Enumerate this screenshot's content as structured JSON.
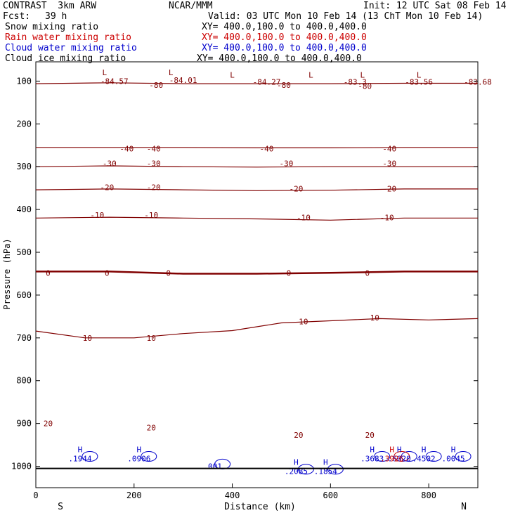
{
  "header": {
    "model": "CONTRAST  3km ARW",
    "center": "NCAR/MMM",
    "init": "Init: 12 UTC Sat 08 Feb 14",
    "fcst_label": "Fcst:",
    "fcst_value": "39 h",
    "valid": "Valid: 03 UTC Mon 10 Feb 14 (13 ChT Mon 10 Feb 14)"
  },
  "fields": [
    {
      "name": "Snow mixing ratio",
      "xy": "XY= 400.0,100.0 to 400.0,400.0",
      "color": "#000000"
    },
    {
      "name": "Rain water mixing ratio",
      "xy": "XY= 400.0,100.0 to 400.0,400.0",
      "color": "#cc0000"
    },
    {
      "name": "Cloud water mixing ratio",
      "xy": "XY= 400.0,100.0 to 400.0,400.0",
      "color": "#0000cc"
    },
    {
      "name": "Cloud ice mixing ratio",
      "xy": "XY= 400.0,100.0 to 400.0,400.0",
      "color": "#000000"
    }
  ],
  "chart_data": {
    "type": "contour cross-section",
    "xlabel": "Distance (km)",
    "ylabel": "Pressure (hPa)",
    "xlim": [
      0,
      900
    ],
    "ylim": [
      1050,
      55
    ],
    "x_ticks": [
      0,
      200,
      400,
      600,
      800
    ],
    "y_ticks": [
      100,
      200,
      300,
      400,
      500,
      600,
      700,
      800,
      900,
      1000
    ],
    "left_end": "S",
    "right_end": "N",
    "temperature_color": "#800000",
    "cloud_color": "#0000cc",
    "isotherms": [
      {
        "value": 10,
        "points": [
          [
            0,
            684
          ],
          [
            100,
            700
          ],
          [
            200,
            700
          ],
          [
            300,
            690
          ],
          [
            400,
            683
          ],
          [
            500,
            665
          ],
          [
            600,
            660
          ],
          [
            700,
            655
          ],
          [
            800,
            658
          ],
          [
            900,
            655
          ]
        ]
      },
      {
        "value": 0,
        "points": [
          [
            0,
            545
          ],
          [
            150,
            545
          ],
          [
            300,
            550
          ],
          [
            450,
            550
          ],
          [
            600,
            548
          ],
          [
            750,
            545
          ],
          [
            900,
            545
          ]
        ]
      },
      {
        "value": -10,
        "points": [
          [
            0,
            420
          ],
          [
            150,
            418
          ],
          [
            300,
            420
          ],
          [
            450,
            422
          ],
          [
            600,
            425
          ],
          [
            750,
            420
          ],
          [
            900,
            420
          ]
        ]
      },
      {
        "value": -20,
        "points": [
          [
            0,
            354
          ],
          [
            150,
            352
          ],
          [
            300,
            354
          ],
          [
            450,
            356
          ],
          [
            600,
            355
          ],
          [
            750,
            352
          ],
          [
            900,
            352
          ]
        ]
      },
      {
        "value": -30,
        "points": [
          [
            0,
            300
          ],
          [
            150,
            298
          ],
          [
            300,
            300
          ],
          [
            450,
            301
          ],
          [
            600,
            300
          ],
          [
            750,
            300
          ],
          [
            900,
            300
          ]
        ]
      },
      {
        "value": -40,
        "points": [
          [
            0,
            255
          ],
          [
            150,
            255
          ],
          [
            300,
            255
          ],
          [
            450,
            256
          ],
          [
            600,
            256
          ],
          [
            750,
            255
          ],
          [
            900,
            255
          ]
        ]
      },
      {
        "value": -80,
        "points": [
          [
            0,
            106
          ],
          [
            150,
            104
          ],
          [
            300,
            106
          ],
          [
            450,
            106
          ],
          [
            600,
            106
          ],
          [
            750,
            105
          ],
          [
            900,
            105
          ]
        ]
      }
    ],
    "contour_labels": [
      {
        "text": "-84.57",
        "x": 160,
        "p": 100
      },
      {
        "text": "-84.01",
        "x": 300,
        "p": 98
      },
      {
        "text": "-84.27",
        "x": 470,
        "p": 102
      },
      {
        "text": "-83.3",
        "x": 650,
        "p": 102
      },
      {
        "text": "-83.56",
        "x": 780,
        "p": 102
      },
      {
        "text": "-83.68",
        "x": 920,
        "p": 102
      },
      {
        "text": "-80",
        "x": 245,
        "p": 109
      },
      {
        "text": "-80",
        "x": 505,
        "p": 109
      },
      {
        "text": "-80",
        "x": 670,
        "p": 112
      },
      {
        "text": "-40",
        "x": 185,
        "p": 258
      },
      {
        "text": "-40",
        "x": 240,
        "p": 258
      },
      {
        "text": "-40",
        "x": 470,
        "p": 258
      },
      {
        "text": "-40",
        "x": 720,
        "p": 258
      },
      {
        "text": "-30",
        "x": 150,
        "p": 292
      },
      {
        "text": "-30",
        "x": 240,
        "p": 292
      },
      {
        "text": "-30",
        "x": 510,
        "p": 292
      },
      {
        "text": "-30",
        "x": 720,
        "p": 292
      },
      {
        "text": "-20",
        "x": 145,
        "p": 348
      },
      {
        "text": "-20",
        "x": 240,
        "p": 348
      },
      {
        "text": "-20",
        "x": 530,
        "p": 351
      },
      {
        "text": "-20",
        "x": 720,
        "p": 351
      },
      {
        "text": "-10",
        "x": 125,
        "p": 413
      },
      {
        "text": "-10",
        "x": 235,
        "p": 413
      },
      {
        "text": "-10",
        "x": 545,
        "p": 419
      },
      {
        "text": "-10",
        "x": 715,
        "p": 419
      },
      {
        "text": "0",
        "x": 25,
        "p": 548
      },
      {
        "text": "0",
        "x": 145,
        "p": 548
      },
      {
        "text": "0",
        "x": 270,
        "p": 548
      },
      {
        "text": "0",
        "x": 515,
        "p": 548
      },
      {
        "text": "0",
        "x": 675,
        "p": 548
      },
      {
        "text": "10",
        "x": 545,
        "p": 662
      },
      {
        "text": "10",
        "x": 690,
        "p": 653
      },
      {
        "text": "10",
        "x": 105,
        "p": 700
      },
      {
        "text": "10",
        "x": 235,
        "p": 700
      },
      {
        "text": "20",
        "x": 25,
        "p": 900
      },
      {
        "text": "20",
        "x": 235,
        "p": 910
      },
      {
        "text": "20",
        "x": 535,
        "p": 927
      },
      {
        "text": "20",
        "x": 680,
        "p": 927
      }
    ],
    "lows": [
      {
        "x": 140,
        "p": 80
      },
      {
        "x": 275,
        "p": 80
      },
      {
        "x": 400,
        "p": 85
      },
      {
        "x": 560,
        "p": 85
      },
      {
        "x": 665,
        "p": 85
      },
      {
        "x": 780,
        "p": 85
      }
    ],
    "cloud_maxima": [
      {
        "label": "H",
        "value": ".1944",
        "x": 90,
        "p": 967
      },
      {
        "label": "H",
        "value": ".0906",
        "x": 210,
        "p": 967
      },
      {
        "label": "",
        "value": ".001",
        "x": 360,
        "p": 985
      },
      {
        "label": "H",
        "value": ".2085",
        "x": 530,
        "p": 997
      },
      {
        "label": "H",
        "value": ".1854",
        "x": 590,
        "p": 997
      },
      {
        "label": "H",
        "value": ".3683",
        "x": 685,
        "p": 967
      },
      {
        "label": "H",
        "value": ".6020",
        "x": 740,
        "p": 967
      },
      {
        "label": "H",
        "value": ".4502",
        "x": 790,
        "p": 967
      },
      {
        "label": "H",
        "value": ".0045",
        "x": 850,
        "p": 967
      }
    ],
    "rain_maxima": [
      {
        "label": "H",
        "value": ".3926",
        "x": 725,
        "p": 967
      }
    ]
  }
}
